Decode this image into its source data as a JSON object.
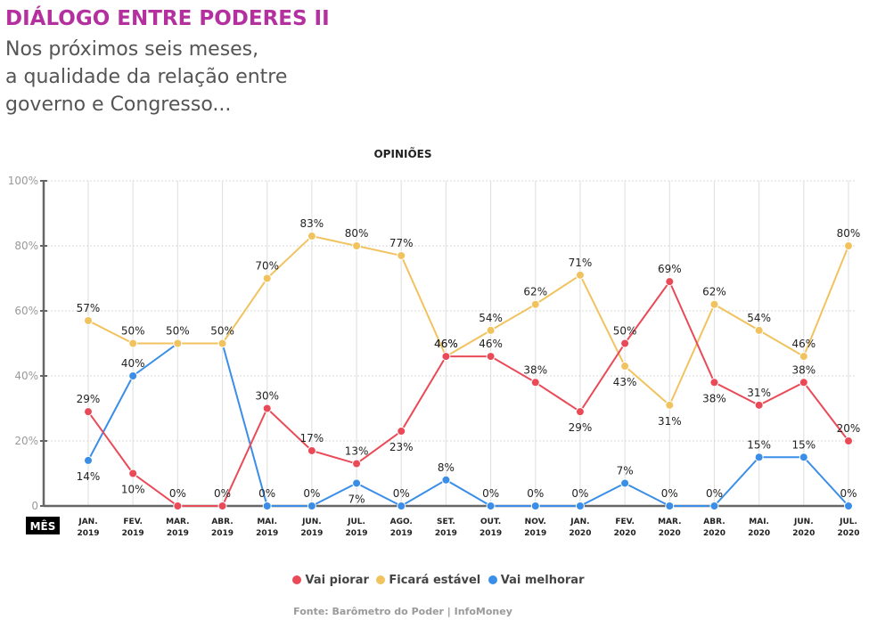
{
  "header": {
    "title": "DIÁLOGO ENTRE PODERES II",
    "subtitle_lines": [
      "Nos próximos seis meses,",
      "a qualidade da relação entre",
      "governo e Congresso..."
    ]
  },
  "colors": {
    "title": "#b5309f",
    "vai_piorar": "#ea4a57",
    "ficara_estavel": "#f0c35f",
    "vai_melhorar": "#3a8ee8"
  },
  "chart_data": {
    "type": "line",
    "title": "OPINIÕES",
    "xlabel": "MÊS",
    "ylabel": "",
    "ylim": [
      0,
      100
    ],
    "yticks": [
      0,
      20,
      40,
      60,
      80,
      100
    ],
    "ytick_labels": [
      "0",
      "20%",
      "40%",
      "60%",
      "80%",
      "100%"
    ],
    "grid": true,
    "legend_position": "bottom-center",
    "categories": [
      [
        "JAN.",
        "2019"
      ],
      [
        "FEV.",
        "2019"
      ],
      [
        "MAR.",
        "2019"
      ],
      [
        "ABR.",
        "2019"
      ],
      [
        "MAI.",
        "2019"
      ],
      [
        "JUN.",
        "2019"
      ],
      [
        "JUL.",
        "2019"
      ],
      [
        "AGO.",
        "2019"
      ],
      [
        "SET.",
        "2019"
      ],
      [
        "OUT.",
        "2019"
      ],
      [
        "NOV.",
        "2019"
      ],
      [
        "JAN.",
        "2020"
      ],
      [
        "FEV.",
        "2020"
      ],
      [
        "MAR.",
        "2020"
      ],
      [
        "ABR.",
        "2020"
      ],
      [
        "MAI.",
        "2020"
      ],
      [
        "JUN.",
        "2020"
      ],
      [
        "JUL.",
        "2020"
      ]
    ],
    "series": [
      {
        "name": "Vai piorar",
        "color_key": "vai_piorar",
        "values": [
          29,
          10,
          0,
          0,
          30,
          17,
          13,
          23,
          46,
          46,
          38,
          29,
          50,
          69,
          38,
          31,
          38,
          20
        ],
        "label_pos": [
          "above",
          "below",
          "above",
          "above",
          "above",
          "above",
          "above",
          "below",
          "above",
          "above",
          "above",
          "below",
          "above",
          "above",
          "below",
          "above",
          "above",
          "above"
        ]
      },
      {
        "name": "Ficará estável",
        "color_key": "ficara_estavel",
        "values": [
          57,
          50,
          50,
          50,
          70,
          83,
          80,
          77,
          46,
          54,
          62,
          71,
          43,
          31,
          62,
          54,
          46,
          80
        ],
        "label_pos": [
          "above",
          "above",
          "above",
          "above",
          "above",
          "above",
          "above",
          "above",
          "above",
          "above",
          "above",
          "above",
          "below",
          "below",
          "above",
          "above",
          "above",
          "above"
        ]
      },
      {
        "name": "Vai melhorar",
        "color_key": "vai_melhorar",
        "values": [
          14,
          40,
          50,
          50,
          0,
          0,
          7,
          0,
          8,
          0,
          0,
          0,
          7,
          0,
          0,
          15,
          15,
          0
        ],
        "label_pos": [
          "below",
          "above",
          "none",
          "none",
          "above",
          "above",
          "below",
          "above",
          "above",
          "above",
          "above",
          "above",
          "above",
          "above",
          "above",
          "above",
          "above",
          "above"
        ]
      }
    ]
  },
  "source": "Fonte: Barômetro do Poder | InfoMoney"
}
